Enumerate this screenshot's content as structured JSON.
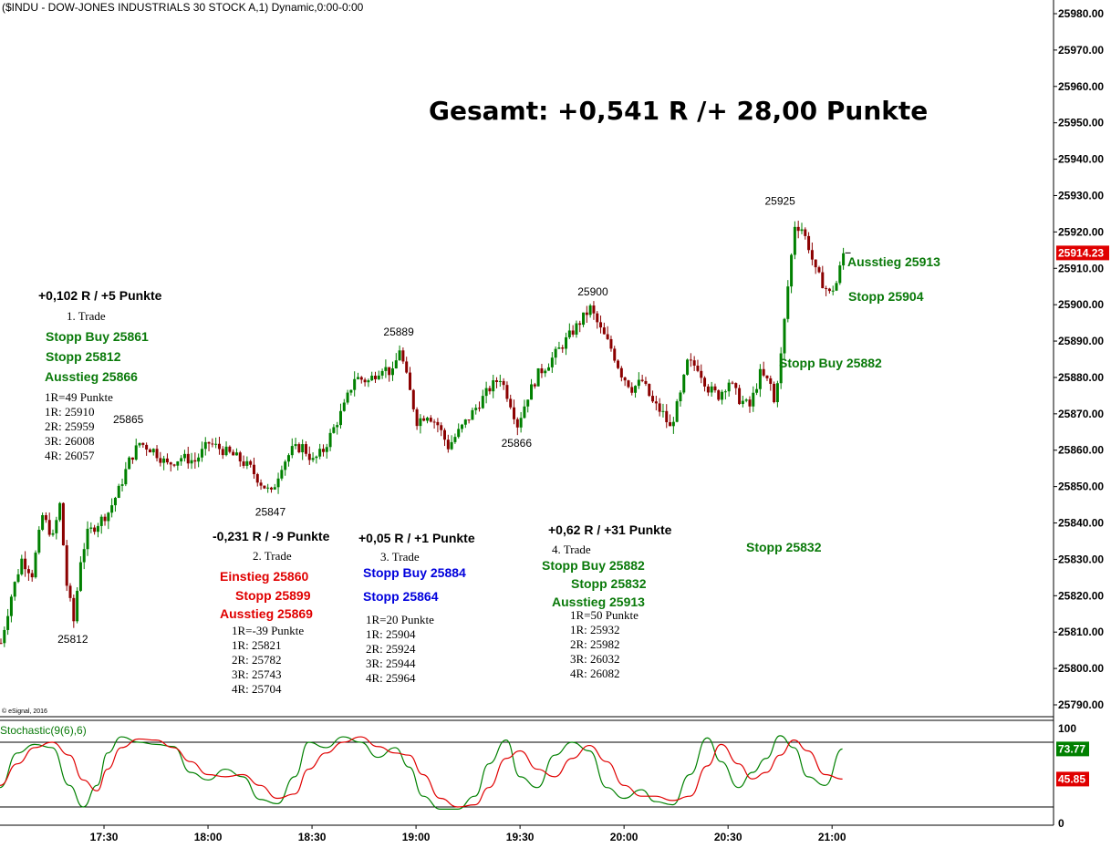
{
  "header": "($INDU - DOW-JONES INDUSTRIALS 30 STOCK A,1) Dynamic,0:00-0:00",
  "copyright": "© eSignal, 2016",
  "summary": "Gesamt: +0,541 R /+ 28,00 Punkte",
  "colors": {
    "up": "#008000",
    "down": "#8b0000",
    "green": "#0a7a0a",
    "red": "#e00000",
    "blue": "#0000dd",
    "k": "#008000",
    "d": "#e00000"
  },
  "chart_data": [
    {
      "type": "candlestick",
      "ylim": [
        25785,
        25985
      ],
      "y_ticks": [
        "25790.00",
        "25800.00",
        "25810.00",
        "25820.00",
        "25830.00",
        "25840.00",
        "25850.00",
        "25860.00",
        "25870.00",
        "25880.00",
        "25890.00",
        "25900.00",
        "25910.00",
        "25920.00",
        "25930.00",
        "25940.00",
        "25950.00",
        "25960.00",
        "25970.00",
        "25980.00"
      ],
      "x_ticks": [
        "17:30",
        "18:00",
        "18:30",
        "19:00",
        "19:30",
        "20:00",
        "20:30",
        "21:00"
      ],
      "x_range_minutes": [
        "17:00",
        "21:06"
      ],
      "last_price": "25914.23",
      "swing_labels": [
        {
          "text": "25812",
          "time": "17:21",
          "price": 25812
        },
        {
          "text": "25865",
          "time": "17:37",
          "price": 25865
        },
        {
          "text": "25847",
          "time": "18:18",
          "price": 25847
        },
        {
          "text": "25889",
          "time": "18:55",
          "price": 25889
        },
        {
          "text": "25866",
          "time": "19:29",
          "price": 25866
        },
        {
          "text": "25900",
          "time": "19:51",
          "price": 25900
        },
        {
          "text": "25925",
          "time": "20:45",
          "price": 25925
        }
      ],
      "path": [
        [
          "17:00",
          25807
        ],
        [
          "17:03",
          25820
        ],
        [
          "17:06",
          25830
        ],
        [
          "17:09",
          25826
        ],
        [
          "17:12",
          25842
        ],
        [
          "17:15",
          25836
        ],
        [
          "17:17",
          25845
        ],
        [
          "17:19",
          25823
        ],
        [
          "17:21",
          25813
        ],
        [
          "17:23",
          25830
        ],
        [
          "17:25",
          25837
        ],
        [
          "17:28",
          25840
        ],
        [
          "17:31",
          25843
        ],
        [
          "17:34",
          25849
        ],
        [
          "17:37",
          25857
        ],
        [
          "17:40",
          25862
        ],
        [
          "17:44",
          25860
        ],
        [
          "17:48",
          25856
        ],
        [
          "17:52",
          25858
        ],
        [
          "17:56",
          25857
        ],
        [
          "18:00",
          25862
        ],
        [
          "18:04",
          25860
        ],
        [
          "18:08",
          25858
        ],
        [
          "18:12",
          25855
        ],
        [
          "18:15",
          25851
        ],
        [
          "18:18",
          25848
        ],
        [
          "18:21",
          25856
        ],
        [
          "18:24",
          25860
        ],
        [
          "18:27",
          25861
        ],
        [
          "18:30",
          25857
        ],
        [
          "18:33",
          25860
        ],
        [
          "18:36",
          25866
        ],
        [
          "18:39",
          25872
        ],
        [
          "18:42",
          25880
        ],
        [
          "18:46",
          25879
        ],
        [
          "18:50",
          25883
        ],
        [
          "18:53",
          25881
        ],
        [
          "18:55",
          25888
        ],
        [
          "18:58",
          25876
        ],
        [
          "19:00",
          25868
        ],
        [
          "19:03",
          25870
        ],
        [
          "19:06",
          25867
        ],
        [
          "19:09",
          25861
        ],
        [
          "19:12",
          25865
        ],
        [
          "19:15",
          25869
        ],
        [
          "19:18",
          25873
        ],
        [
          "19:21",
          25877
        ],
        [
          "19:24",
          25880
        ],
        [
          "19:27",
          25873
        ],
        [
          "19:29",
          25867
        ],
        [
          "19:32",
          25875
        ],
        [
          "19:35",
          25881
        ],
        [
          "19:38",
          25884
        ],
        [
          "19:42",
          25889
        ],
        [
          "19:46",
          25894
        ],
        [
          "19:50",
          25899
        ],
        [
          "19:53",
          25893
        ],
        [
          "19:56",
          25888
        ],
        [
          "19:59",
          25881
        ],
        [
          "20:02",
          25877
        ],
        [
          "20:05",
          25879
        ],
        [
          "20:08",
          25873
        ],
        [
          "20:11",
          25870
        ],
        [
          "20:13",
          25866
        ],
        [
          "20:16",
          25875
        ],
        [
          "20:18",
          25884
        ],
        [
          "20:21",
          25883
        ],
        [
          "20:24",
          25877
        ],
        [
          "20:27",
          25875
        ],
        [
          "20:30",
          25879
        ],
        [
          "20:33",
          25874
        ],
        [
          "20:36",
          25872
        ],
        [
          "20:39",
          25881
        ],
        [
          "20:42",
          25878
        ],
        [
          "20:43",
          25873
        ],
        [
          "20:45",
          25886
        ],
        [
          "20:47",
          25905
        ],
        [
          "20:49",
          25922
        ],
        [
          "20:51",
          25921
        ],
        [
          "20:53",
          25916
        ],
        [
          "20:55",
          25909
        ],
        [
          "20:57",
          25906
        ],
        [
          "20:59",
          25903
        ],
        [
          "21:01",
          25906
        ],
        [
          "21:03",
          25914
        ]
      ],
      "annotations": [
        {
          "text": "+0,102 R / +5 Punkte",
          "color": "black",
          "style": "bold"
        },
        {
          "text": "1. Trade",
          "color": "black",
          "style": "small"
        },
        {
          "text": "Stopp Buy 25861",
          "color": "green",
          "style": "bold"
        },
        {
          "text": "Stopp 25812",
          "color": "green",
          "style": "bold"
        },
        {
          "text": "Ausstieg 25866",
          "color": "green",
          "style": "bold"
        },
        {
          "text": "1R=49 Punkte",
          "color": "black",
          "style": "small"
        },
        {
          "text": "1R: 25910",
          "color": "black",
          "style": "small"
        },
        {
          "text": "2R: 25959",
          "color": "black",
          "style": "small"
        },
        {
          "text": "3R: 26008",
          "color": "black",
          "style": "small"
        },
        {
          "text": "4R: 26057",
          "color": "black",
          "style": "small"
        },
        {
          "text": "-0,231 R / -9 Punkte",
          "color": "black",
          "style": "bold"
        },
        {
          "text": "2. Trade",
          "color": "black",
          "style": "small"
        },
        {
          "text": "Einstieg 25860",
          "color": "red",
          "style": "bold"
        },
        {
          "text": "Stopp 25899",
          "color": "red",
          "style": "bold"
        },
        {
          "text": "Ausstieg 25869",
          "color": "red",
          "style": "bold"
        },
        {
          "text": "1R=-39 Punkte",
          "color": "black",
          "style": "small"
        },
        {
          "text": "1R: 25821",
          "color": "black",
          "style": "small"
        },
        {
          "text": "2R: 25782",
          "color": "black",
          "style": "small"
        },
        {
          "text": "3R: 25743",
          "color": "black",
          "style": "small"
        },
        {
          "text": "4R: 25704",
          "color": "black",
          "style": "small"
        },
        {
          "text": "+0,05 R / +1 Punkte",
          "color": "black",
          "style": "bold"
        },
        {
          "text": "3. Trade",
          "color": "black",
          "style": "small"
        },
        {
          "text": "Stopp Buy 25884",
          "color": "blue",
          "style": "bold"
        },
        {
          "text": "Stopp 25864",
          "color": "blue",
          "style": "bold"
        },
        {
          "text": "1R=20 Punkte",
          "color": "black",
          "style": "small"
        },
        {
          "text": "1R: 25904",
          "color": "black",
          "style": "small"
        },
        {
          "text": "2R: 25924",
          "color": "black",
          "style": "small"
        },
        {
          "text": "3R: 25944",
          "color": "black",
          "style": "small"
        },
        {
          "text": "4R: 25964",
          "color": "black",
          "style": "small"
        },
        {
          "text": "+0,62 R / +31 Punkte",
          "color": "black",
          "style": "bold"
        },
        {
          "text": "4. Trade",
          "color": "black",
          "style": "small"
        },
        {
          "text": "Stopp Buy 25882",
          "color": "green",
          "style": "bold"
        },
        {
          "text": "Stopp 25832",
          "color": "green",
          "style": "bold"
        },
        {
          "text": "Ausstieg 25913",
          "color": "green",
          "style": "bold"
        },
        {
          "text": "1R=50 Punkte",
          "color": "black",
          "style": "small"
        },
        {
          "text": "1R: 25932",
          "color": "black",
          "style": "small"
        },
        {
          "text": "2R: 25982",
          "color": "black",
          "style": "small"
        },
        {
          "text": "3R: 26032",
          "color": "black",
          "style": "small"
        },
        {
          "text": "4R: 26082",
          "color": "black",
          "style": "small"
        },
        {
          "text": "Ausstieg 25913",
          "color": "green",
          "style": "bold"
        },
        {
          "text": "Stopp 25904",
          "color": "green",
          "style": "bold"
        },
        {
          "text": "Stopp Buy 25882",
          "color": "green",
          "style": "bold"
        },
        {
          "text": "Stopp 25832",
          "color": "green",
          "style": "bold"
        }
      ]
    },
    {
      "type": "line",
      "title": "Stochastic(9(6),6)",
      "ylim": [
        0,
        100
      ],
      "y_ticks": [
        "100",
        "0"
      ],
      "levels": [
        80,
        20
      ],
      "last_values": {
        "k": "73.77",
        "d": "45.85"
      },
      "series": [
        {
          "key": "k",
          "points": [
            [
              "17:00",
              38
            ],
            [
              "17:05",
              70
            ],
            [
              "17:10",
              78
            ],
            [
              "17:15",
              75
            ],
            [
              "17:20",
              40
            ],
            [
              "17:24",
              20
            ],
            [
              "17:28",
              40
            ],
            [
              "17:31",
              70
            ],
            [
              "17:35",
              85
            ],
            [
              "17:40",
              80
            ],
            [
              "17:45",
              78
            ],
            [
              "17:50",
              76
            ],
            [
              "17:55",
              52
            ],
            [
              "18:00",
              45
            ],
            [
              "18:05",
              55
            ],
            [
              "18:10",
              48
            ],
            [
              "18:15",
              27
            ],
            [
              "18:20",
              23
            ],
            [
              "18:25",
              48
            ],
            [
              "18:29",
              80
            ],
            [
              "18:34",
              75
            ],
            [
              "18:39",
              85
            ],
            [
              "18:44",
              80
            ],
            [
              "18:49",
              66
            ],
            [
              "18:54",
              75
            ],
            [
              "18:58",
              57
            ],
            [
              "19:02",
              30
            ],
            [
              "19:07",
              18
            ],
            [
              "19:12",
              18
            ],
            [
              "19:17",
              30
            ],
            [
              "19:21",
              60
            ],
            [
              "19:26",
              82
            ],
            [
              "19:30",
              48
            ],
            [
              "19:35",
              38
            ],
            [
              "19:40",
              68
            ],
            [
              "19:45",
              80
            ],
            [
              "19:50",
              72
            ],
            [
              "19:55",
              38
            ],
            [
              "20:00",
              28
            ],
            [
              "20:05",
              36
            ],
            [
              "20:09",
              25
            ],
            [
              "20:14",
              22
            ],
            [
              "20:19",
              50
            ],
            [
              "20:24",
              84
            ],
            [
              "20:28",
              62
            ],
            [
              "20:33",
              38
            ],
            [
              "20:37",
              52
            ],
            [
              "20:41",
              65
            ],
            [
              "20:45",
              86
            ],
            [
              "20:49",
              75
            ],
            [
              "20:53",
              48
            ],
            [
              "20:58",
              40
            ],
            [
              "21:03",
              73.77
            ]
          ]
        },
        {
          "key": "d",
          "points": [
            [
              "17:00",
              40
            ],
            [
              "17:05",
              60
            ],
            [
              "17:10",
              75
            ],
            [
              "17:15",
              80
            ],
            [
              "17:20",
              68
            ],
            [
              "17:24",
              45
            ],
            [
              "17:28",
              35
            ],
            [
              "17:31",
              55
            ],
            [
              "17:35",
              75
            ],
            [
              "17:40",
              83
            ],
            [
              "17:45",
              82
            ],
            [
              "17:50",
              75
            ],
            [
              "17:55",
              62
            ],
            [
              "18:00",
              50
            ],
            [
              "18:05",
              48
            ],
            [
              "18:10",
              50
            ],
            [
              "18:15",
              40
            ],
            [
              "18:20",
              28
            ],
            [
              "18:25",
              32
            ],
            [
              "18:29",
              55
            ],
            [
              "18:34",
              70
            ],
            [
              "18:39",
              80
            ],
            [
              "18:44",
              85
            ],
            [
              "18:49",
              76
            ],
            [
              "18:54",
              70
            ],
            [
              "18:58",
              68
            ],
            [
              "19:02",
              50
            ],
            [
              "19:07",
              28
            ],
            [
              "19:12",
              20
            ],
            [
              "19:17",
              22
            ],
            [
              "19:21",
              38
            ],
            [
              "19:26",
              65
            ],
            [
              "19:30",
              72
            ],
            [
              "19:35",
              55
            ],
            [
              "19:40",
              48
            ],
            [
              "19:45",
              65
            ],
            [
              "19:50",
              77
            ],
            [
              "19:55",
              62
            ],
            [
              "20:00",
              40
            ],
            [
              "20:05",
              30
            ],
            [
              "20:09",
              30
            ],
            [
              "20:14",
              26
            ],
            [
              "20:19",
              30
            ],
            [
              "20:24",
              58
            ],
            [
              "20:28",
              78
            ],
            [
              "20:33",
              60
            ],
            [
              "20:37",
              46
            ],
            [
              "20:41",
              52
            ],
            [
              "20:45",
              68
            ],
            [
              "20:49",
              82
            ],
            [
              "20:53",
              72
            ],
            [
              "20:58",
              50
            ],
            [
              "21:03",
              45.85
            ]
          ]
        }
      ]
    }
  ]
}
